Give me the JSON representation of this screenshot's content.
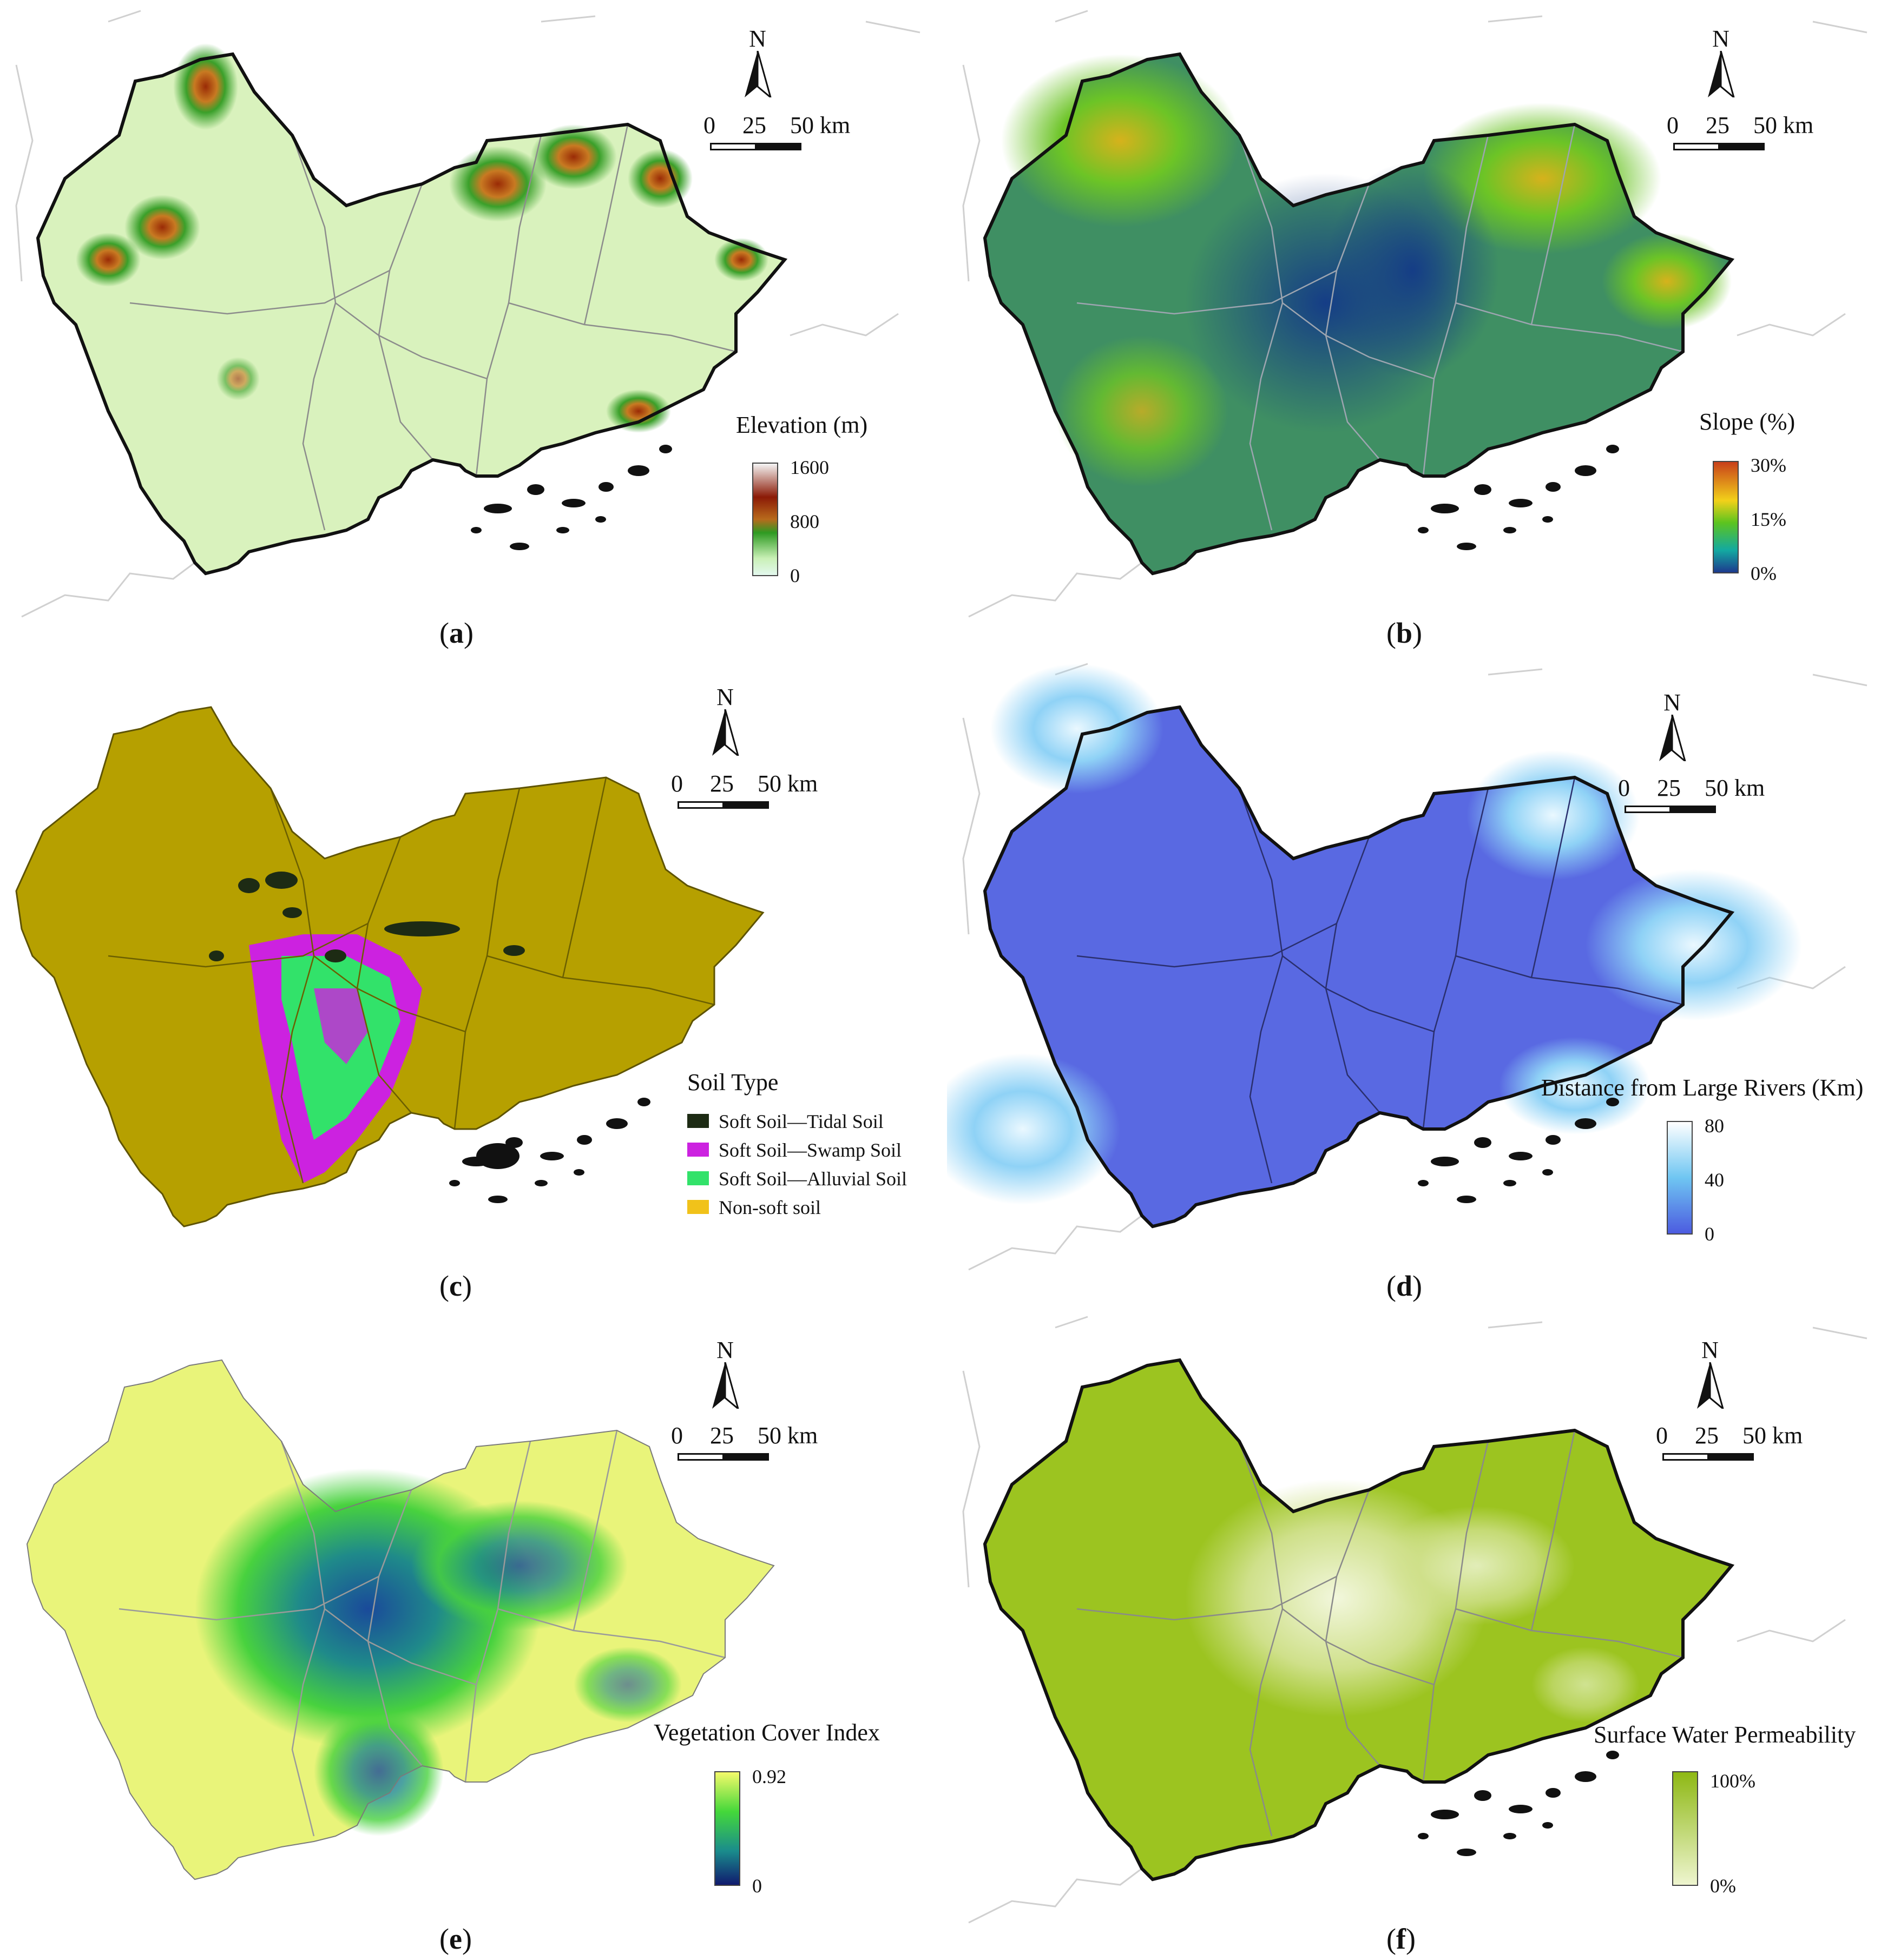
{
  "north_label": "N",
  "scale": {
    "zero": "0",
    "mid": "25",
    "end": "50 km"
  },
  "panels": [
    {
      "letter": "a",
      "legend_title": "Elevation (m)",
      "ticks": [
        "1600",
        "800",
        "0"
      ],
      "ramp": [
        "#f5f5f5",
        "#8b1a06",
        "#b86a1c",
        "#2e9a22",
        "#c9f0b6",
        "#e3f8ee"
      ],
      "fill": "#d9f2bd"
    },
    {
      "letter": "b",
      "legend_title": "Slope (%)",
      "ticks": [
        "30%",
        "15%",
        "0%"
      ],
      "ramp": [
        "#c8401a",
        "#f2d11a",
        "#5cc41f",
        "#13a9a1",
        "#1d3a8e"
      ],
      "fill": "#3f8f63"
    },
    {
      "letter": "c",
      "legend_title": "Soil Type",
      "ticks": [],
      "fill": "#b6a000",
      "soil_types": [
        {
          "label": "Soft Soil—Tidal Soil",
          "color": "#1d2b14"
        },
        {
          "label": "Soft Soil—Swamp Soil",
          "color": "#cc22e0"
        },
        {
          "label": "Soft Soil—Alluvial Soil",
          "color": "#32e26a"
        },
        {
          "label": "Non-soft soil",
          "color": "#f1c21a"
        }
      ]
    },
    {
      "letter": "d",
      "legend_title": "Distance from Large Rivers (Km)",
      "ticks": [
        "80",
        "40",
        "0"
      ],
      "ramp": [
        "#ffffff",
        "#6fc6f2",
        "#4c5be0"
      ],
      "fill": "#5969e2"
    },
    {
      "letter": "e",
      "legend_title": "Vegetation Cover Index",
      "ticks": [
        "0.92",
        "0"
      ],
      "ramp": [
        "#f4fa6a",
        "#44d83a",
        "#1a8c8c",
        "#101a6e"
      ],
      "fill": "#e9f47a"
    },
    {
      "letter": "f",
      "legend_title": "Surface Water Permeability",
      "ticks": [
        "100%",
        "0%"
      ],
      "ramp": [
        "#8eb814",
        "#eef5cf"
      ],
      "fill": "#9cc420"
    }
  ]
}
